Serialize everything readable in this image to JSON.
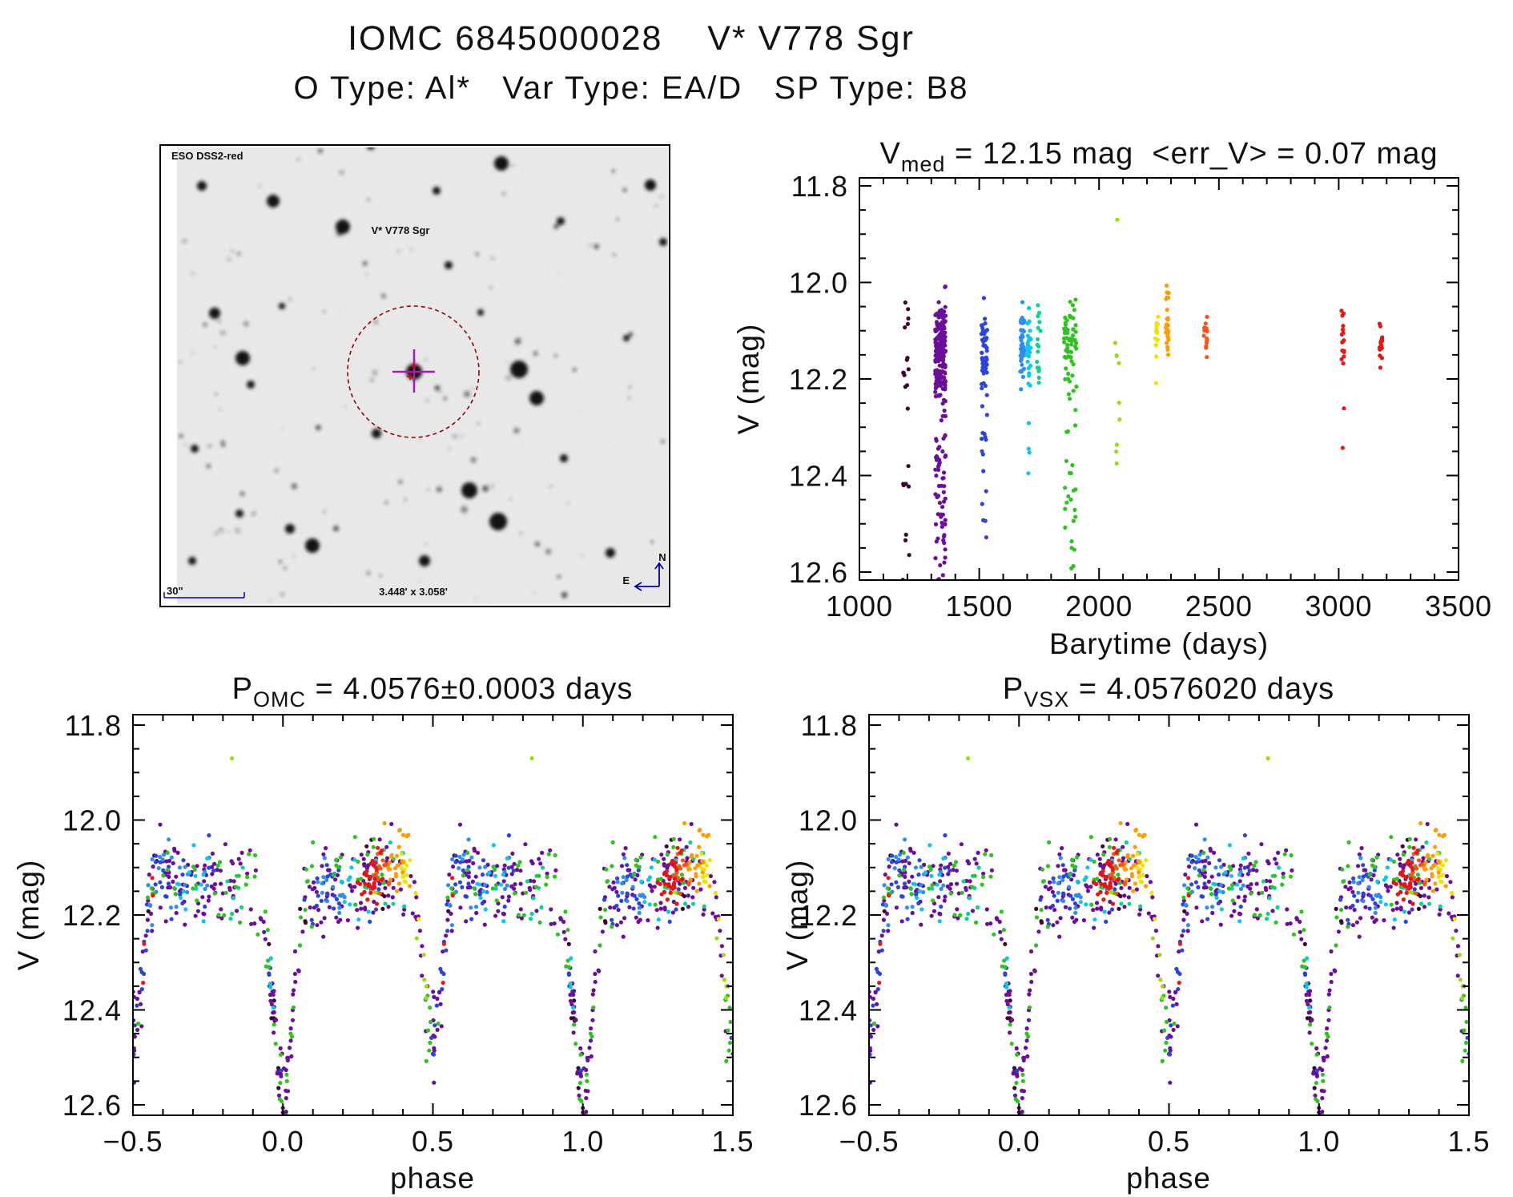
{
  "header": {
    "title": "IOMC 6845000028    V* V778 Sgr",
    "subtitle": "O Type: Al*   Var Type: EA/D   SP Type: B8"
  },
  "finder": {
    "survey_label": "ESO DSS2-red",
    "target_label": "V* V778 Sgr",
    "scale_label": "30\"",
    "fov_label": "3.448' x 3.058'",
    "compass_north": "N",
    "compass_east": "E",
    "annotation_blue": "#0000aa",
    "target_red": "#cc0000",
    "circle_color": "#990000",
    "crosshair_color": "#a020b0",
    "bright_stars": [
      [
        517,
        464,
        10
      ],
      [
        648,
        461,
        11
      ],
      [
        670,
        497,
        9
      ],
      [
        303,
        447,
        9
      ],
      [
        268,
        391,
        7
      ],
      [
        313,
        480,
        5
      ],
      [
        428,
        283,
        9
      ],
      [
        341,
        251,
        8
      ],
      [
        252,
        232,
        6
      ],
      [
        586,
        612,
        10
      ],
      [
        622,
        651,
        11
      ],
      [
        390,
        681,
        9
      ],
      [
        362,
        660,
        6
      ],
      [
        299,
        641,
        5
      ],
      [
        626,
        204,
        9
      ],
      [
        700,
        276,
        5
      ],
      [
        812,
        231,
        7
      ],
      [
        560,
        331,
        5
      ],
      [
        470,
        541,
        6
      ],
      [
        704,
        572,
        5
      ],
      [
        243,
        560,
        5
      ],
      [
        530,
        700,
        7
      ],
      [
        463,
        182,
        5
      ],
      [
        782,
        422,
        4
      ],
      [
        828,
        302,
        5
      ],
      [
        762,
        690,
        6
      ],
      [
        545,
        238,
        5
      ],
      [
        240,
        700,
        5
      ],
      [
        600,
        390,
        4
      ],
      [
        352,
        382,
        4
      ]
    ]
  },
  "chart_data": {
    "point_color_meaning": "observation epoch, time-ordered rainbow colour code shared by all three plots",
    "charts": [
      {
        "id": "barytime",
        "type": "scatter",
        "title_pre": "V",
        "title_sub": "med",
        "title_post": " = 12.15 mag  <err_V> = 0.07 mag",
        "xlabel": "Barytime (days)",
        "ylabel": "V (mag)",
        "xlim": [
          1000,
          3500
        ],
        "ylim": [
          12.6,
          11.8
        ],
        "y_axis_inverted_magnitudes": true,
        "grid": false,
        "xticks": [
          1000,
          1500,
          2000,
          2500,
          3000,
          3500
        ],
        "xtick_labels": [
          "1000",
          "1500",
          "2000",
          "2500",
          "3000",
          "3500"
        ],
        "xminor": 100,
        "yticks": [
          11.8,
          12.0,
          12.2,
          12.4,
          12.6
        ],
        "ytick_labels": [
          "11.8",
          "12.0",
          "12.2",
          "12.4",
          "12.6"
        ],
        "yminor": 0.05,
        "x_field": "t"
      },
      {
        "id": "phase_omc",
        "type": "scatter",
        "title_pre": "P",
        "title_sub": "OMC",
        "title_post": " = 4.0576±0.0003 days",
        "xlabel": "phase",
        "ylabel": "V (mag)",
        "xlim": [
          -0.5,
          1.5
        ],
        "ylim": [
          12.6,
          11.8
        ],
        "y_axis_inverted_magnitudes": true,
        "grid": false,
        "xticks": [
          -0.5,
          0.0,
          0.5,
          1.0,
          1.5
        ],
        "xtick_labels": [
          "−0.5",
          "0.0",
          "0.5",
          "1.0",
          "1.5"
        ],
        "xminor": 0.1,
        "yticks": [
          11.8,
          12.0,
          12.2,
          12.4,
          12.6
        ],
        "ytick_labels": [
          "11.8",
          "12.0",
          "12.2",
          "12.4",
          "12.6"
        ],
        "yminor": 0.05,
        "x_field": "phase",
        "fold_range_note": "each observation plotted at phase and phase±1 over [-0.5,1.5]"
      },
      {
        "id": "phase_vsx",
        "type": "scatter",
        "title_pre": "P",
        "title_sub": "VSX",
        "title_post": " = 4.0576020 days",
        "xlabel": "phase",
        "ylabel": "V (mag)",
        "xlim": [
          -0.5,
          1.5
        ],
        "ylim": [
          12.6,
          11.8
        ],
        "y_axis_inverted_magnitudes": true,
        "grid": false,
        "xticks": [
          -0.5,
          0.0,
          0.5,
          1.0,
          1.5
        ],
        "xtick_labels": [
          "−0.5",
          "0.0",
          "0.5",
          "1.0",
          "1.5"
        ],
        "xminor": 0.1,
        "yticks": [
          11.8,
          12.0,
          12.2,
          12.4,
          12.6
        ],
        "ytick_labels": [
          "11.8",
          "12.0",
          "12.2",
          "12.4",
          "12.6"
        ],
        "yminor": 0.05,
        "x_field": "phase",
        "fold_range_note": "same data as phase_omc, folded with the VSX period"
      }
    ],
    "phase_model": {
      "v_base": 12.13,
      "cos_amp": 0.03,
      "primary_eclipse_phase": 0.0,
      "primary_depth": 0.43,
      "secondary_eclipse_phase": 0.5,
      "secondary_depth": 0.37,
      "eclipse_sigma": 0.03,
      "noise_sigma": 0.045,
      "phase_jitter": 0.013,
      "out_of_eclipse_band": [
        12.0,
        12.26
      ],
      "primary_minimum_v": 12.59,
      "secondary_minimum_v": 12.53
    },
    "epochs": [
      {
        "name": "dark-purple",
        "color": "#3a0830",
        "t": 1194,
        "t_jitter": 14,
        "noise": 0.8,
        "stripes": [
          [
            0.29,
            3
          ],
          [
            0.33,
            3
          ],
          [
            0.57,
            4
          ],
          [
            0.965,
            5
          ],
          [
            0.98,
            5
          ],
          [
            0.08,
            3
          ]
        ]
      },
      {
        "name": "purple",
        "color": "#6b0f9a",
        "t": 1338,
        "t_jitter": 22,
        "noise": 1.0,
        "stripes": [
          [
            0.005,
            12
          ],
          [
            0.02,
            9
          ],
          [
            0.985,
            9
          ],
          [
            0.965,
            6
          ],
          [
            0.045,
            6
          ],
          [
            0.955,
            5
          ],
          [
            0.49,
            7
          ],
          [
            0.505,
            7
          ],
          [
            0.525,
            5
          ],
          [
            0.475,
            4
          ],
          [
            0.08,
            7
          ],
          [
            0.12,
            9
          ],
          [
            0.155,
            11
          ],
          [
            0.19,
            9
          ],
          [
            0.225,
            7
          ],
          [
            0.26,
            9
          ],
          [
            0.295,
            11
          ],
          [
            0.33,
            9
          ],
          [
            0.365,
            7
          ],
          [
            0.4,
            7
          ],
          [
            0.435,
            6
          ],
          [
            0.56,
            7
          ],
          [
            0.6,
            9
          ],
          [
            0.635,
            11
          ],
          [
            0.67,
            9
          ],
          [
            0.705,
            7
          ],
          [
            0.74,
            9
          ],
          [
            0.775,
            11
          ],
          [
            0.81,
            9
          ],
          [
            0.845,
            7
          ],
          [
            0.88,
            6
          ],
          [
            0.915,
            5
          ]
        ]
      },
      {
        "name": "blue",
        "color": "#2a44dd",
        "t": 1521,
        "t_jitter": 12,
        "noise": 0.9,
        "stripes": [
          [
            0.1,
            6
          ],
          [
            0.14,
            8
          ],
          [
            0.18,
            6
          ],
          [
            0.3,
            5
          ],
          [
            0.52,
            8
          ],
          [
            0.545,
            6
          ],
          [
            0.58,
            5
          ],
          [
            0.62,
            6
          ],
          [
            0.66,
            5
          ],
          [
            0.74,
            4
          ],
          [
            0.97,
            4
          ]
        ]
      },
      {
        "name": "sky-blue",
        "color": "#2f8df0",
        "t": 1680,
        "t_jitter": 9,
        "noise": 0.9,
        "stripes": [
          [
            0.12,
            5
          ],
          [
            0.16,
            6
          ],
          [
            0.2,
            5
          ],
          [
            0.56,
            4
          ],
          [
            0.6,
            6
          ],
          [
            0.64,
            5
          ],
          [
            0.68,
            4
          ],
          [
            0.76,
            4
          ]
        ]
      },
      {
        "name": "cyan",
        "color": "#0cc8e8",
        "t": 1706,
        "t_jitter": 9,
        "noise": 0.9,
        "stripes": [
          [
            0.22,
            6
          ],
          [
            0.26,
            6
          ],
          [
            0.3,
            4
          ],
          [
            0.66,
            4
          ],
          [
            0.7,
            5
          ],
          [
            0.74,
            4
          ],
          [
            0.96,
            4
          ]
        ]
      },
      {
        "name": "teal",
        "color": "#0bd48e",
        "t": 1748,
        "t_jitter": 8,
        "noise": 0.9,
        "stripes": [
          [
            0.34,
            5
          ],
          [
            0.38,
            4
          ],
          [
            0.82,
            4
          ],
          [
            0.86,
            4
          ]
        ]
      },
      {
        "name": "green",
        "color": "#2ec41f",
        "t": 1880,
        "t_jitter": 26,
        "noise": 1.0,
        "stripes": [
          [
            0.0,
            5
          ],
          [
            0.02,
            4
          ],
          [
            0.975,
            4
          ],
          [
            0.485,
            4
          ],
          [
            0.5,
            5
          ],
          [
            0.06,
            4
          ],
          [
            0.1,
            5
          ],
          [
            0.18,
            5
          ],
          [
            0.26,
            6
          ],
          [
            0.3,
            7
          ],
          [
            0.34,
            6
          ],
          [
            0.55,
            4
          ],
          [
            0.62,
            5
          ],
          [
            0.7,
            5
          ],
          [
            0.78,
            6
          ],
          [
            0.86,
            5
          ],
          [
            0.9,
            4
          ],
          [
            0.94,
            4
          ]
        ]
      },
      {
        "name": "yellow-green",
        "color": "#9edc10",
        "t": 2076,
        "t_jitter": 10,
        "noise": 0.7,
        "stripes": [
          [
            0.3,
            4
          ],
          [
            0.475,
            5
          ]
        ]
      },
      {
        "name": "yellow",
        "color": "#f0e400",
        "t": 2240,
        "t_jitter": 6,
        "noise": 0.5,
        "stripes": [
          [
            0.4,
            9
          ],
          [
            0.425,
            6
          ]
        ]
      },
      {
        "name": "orange",
        "color": "#ff9b00",
        "t": 2284,
        "t_jitter": 7,
        "noise": 0.8,
        "v_offset": -0.03,
        "stripes": [
          [
            0.36,
            6
          ],
          [
            0.38,
            12
          ],
          [
            0.4,
            8
          ]
        ]
      },
      {
        "name": "orange-red",
        "color": "#ff5212",
        "t": 2444,
        "t_jitter": 7,
        "noise": 0.5,
        "stripes": [
          [
            0.32,
            8
          ],
          [
            0.345,
            6
          ]
        ]
      },
      {
        "name": "red-1",
        "color": "#ee1515",
        "t": 3016,
        "t_jitter": 7,
        "noise": 0.8,
        "stripes": [
          [
            0.3,
            9
          ],
          [
            0.32,
            5
          ],
          [
            0.56,
            4
          ]
        ]
      },
      {
        "name": "red-2",
        "color": "#e81212",
        "t": 3176,
        "t_jitter": 6,
        "noise": 0.5,
        "stripes": [
          [
            0.28,
            10
          ],
          [
            0.3,
            8
          ]
        ]
      }
    ],
    "outlier": {
      "epoch": "yellow-green",
      "t": 2076,
      "phase": 0.83,
      "v": 11.87
    }
  }
}
